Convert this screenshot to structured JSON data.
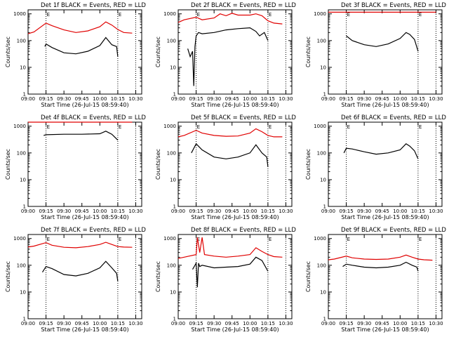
{
  "colors": {
    "events": "#000000",
    "lld": "#e00000",
    "axes": "#000000",
    "background": "#ffffff"
  },
  "chart_data": [
    {
      "type": "line",
      "title": "Det 1f BLACK = Events, RED = LLD",
      "xlabel": "Start Time (26-Jul-15 08:59:40)",
      "ylabel": "Counts/sec",
      "xticks": [
        "09:00",
        "09:15",
        "09:30",
        "09:45",
        "10:00",
        "10:15",
        "10:30"
      ],
      "yticks": [
        "1",
        "10",
        "100",
        "1000"
      ],
      "ylog": true,
      "ylim": [
        1,
        1000
      ],
      "markers": {
        "time": [
          "09:15",
          "10:15",
          "10:30"
        ],
        "labels": [
          "E",
          "E",
          ""
        ]
      },
      "series": [
        {
          "name": "LLD",
          "color": "red",
          "x": [
            "09:00",
            "09:05",
            "09:15",
            "09:20",
            "09:30",
            "09:40",
            "09:50",
            "10:00",
            "10:05",
            "10:10",
            "10:15",
            "10:20",
            "10:27"
          ],
          "y": [
            180,
            210,
            450,
            360,
            250,
            200,
            230,
            330,
            500,
            380,
            260,
            200,
            190
          ]
        },
        {
          "name": "Events",
          "color": "black",
          "x": [
            "09:14",
            "09:15",
            "09:20",
            "09:30",
            "09:40",
            "09:50",
            "10:00",
            "10:05",
            "10:10",
            "10:14",
            "10:15"
          ],
          "y": [
            60,
            75,
            55,
            35,
            32,
            40,
            65,
            130,
            70,
            60,
            25
          ]
        }
      ]
    },
    {
      "type": "line",
      "title": "Det 2f BLACK = Events, RED = LLD",
      "xlabel": "Start Time (26-Jul-15 08:59:40)",
      "ylabel": "Counts/sec",
      "xticks": [
        "09:00",
        "09:15",
        "09:30",
        "09:45",
        "10:00",
        "10:15",
        "10:30"
      ],
      "yticks": [
        "1",
        "10",
        "100",
        "1000"
      ],
      "ylog": true,
      "ylim": [
        1,
        1000
      ],
      "markers": {
        "time": [
          "09:15",
          "10:15",
          "10:30"
        ],
        "labels": [
          "E",
          "E",
          ""
        ]
      },
      "series": [
        {
          "name": "LLD",
          "color": "red",
          "x": [
            "09:00",
            "09:05",
            "09:15",
            "09:20",
            "09:30",
            "09:35",
            "09:40",
            "09:45",
            "09:50",
            "10:00",
            "10:05",
            "10:10",
            "10:15",
            "10:20",
            "10:27"
          ],
          "y": [
            480,
            600,
            750,
            600,
            700,
            1000,
            850,
            1050,
            900,
            900,
            1000,
            850,
            550,
            450,
            420
          ]
        },
        {
          "name": "Events",
          "color": "black",
          "x": [
            "09:08",
            "09:10",
            "09:12",
            "09:13",
            "09:14",
            "09:15",
            "09:17",
            "09:20",
            "09:30",
            "09:40",
            "09:50",
            "10:00",
            "10:05",
            "10:08",
            "10:12",
            "10:15"
          ],
          "y": [
            50,
            25,
            40,
            2,
            60,
            150,
            200,
            180,
            200,
            250,
            280,
            300,
            220,
            150,
            200,
            100
          ]
        }
      ]
    },
    {
      "type": "line",
      "title": "Det 3f BLACK = Events, RED = LLD",
      "xlabel": "Start Time (26-Jul-15 08:59:40)",
      "ylabel": "Counts/sec",
      "xticks": [
        "09:00",
        "09:15",
        "09:30",
        "09:45",
        "10:00",
        "10:15",
        "10:30"
      ],
      "yticks": [
        "1",
        "10",
        "100",
        "1000"
      ],
      "ylog": true,
      "ylim": [
        1,
        1000
      ],
      "markers": {
        "time": [
          "09:15",
          "10:15",
          "10:30"
        ],
        "labels": [
          "E",
          "E",
          ""
        ]
      },
      "series": [
        {
          "name": "LLD",
          "color": "red",
          "x": [
            "09:00",
            "09:15",
            "09:30",
            "09:45",
            "10:00",
            "10:15",
            "10:30"
          ],
          "y": [
            1150,
            1150,
            1150,
            1150,
            1150,
            1150,
            1150
          ]
        },
        {
          "name": "Events",
          "color": "black",
          "x": [
            "09:15",
            "09:20",
            "09:30",
            "09:40",
            "09:50",
            "10:00",
            "10:05",
            "10:08",
            "10:12",
            "10:15"
          ],
          "y": [
            150,
            100,
            70,
            60,
            75,
            120,
            200,
            170,
            110,
            40
          ]
        }
      ]
    },
    {
      "type": "line",
      "title": "Det 4f BLACK = Events, RED = LLD",
      "xlabel": "Start Time (26-Jul-15 08:59:40)",
      "ylabel": "Counts/sec",
      "xticks": [
        "09:00",
        "09:15",
        "09:30",
        "09:45",
        "10:00",
        "10:15",
        "10:30"
      ],
      "yticks": [
        "1",
        "10",
        "100",
        "1000"
      ],
      "ylog": true,
      "ylim": [
        1,
        1000
      ],
      "markers": {
        "time": [
          "09:15",
          "10:15",
          "10:30"
        ],
        "labels": [
          "E",
          "E",
          ""
        ]
      },
      "series": [
        {
          "name": "LLD",
          "color": "red",
          "x": [
            "09:00",
            "09:15",
            "09:30",
            "09:45",
            "10:00",
            "10:05",
            "10:10",
            "10:20",
            "10:27"
          ],
          "y": [
            2000,
            2000,
            2000,
            2000,
            2100,
            2600,
            2200,
            2000,
            1900
          ]
        },
        {
          "name": "Events",
          "color": "black",
          "x": [
            "09:13",
            "09:15",
            "09:30",
            "09:45",
            "10:00",
            "10:05",
            "10:10",
            "10:15"
          ],
          "y": [
            450,
            480,
            500,
            500,
            520,
            650,
            500,
            300
          ]
        }
      ]
    },
    {
      "type": "line",
      "title": "Det 5f BLACK = Events, RED = LLD",
      "xlabel": "Start Time (26-Jul-15 08:59:40)",
      "ylabel": "Counts/sec",
      "xticks": [
        "09:00",
        "09:15",
        "09:30",
        "09:45",
        "10:00",
        "10:15",
        "10:30"
      ],
      "yticks": [
        "1",
        "10",
        "100",
        "1000"
      ],
      "ylog": true,
      "ylim": [
        1,
        1000
      ],
      "markers": {
        "time": [
          "09:15",
          "10:15",
          "10:30"
        ],
        "labels": [
          "E",
          "E",
          ""
        ]
      },
      "series": [
        {
          "name": "LLD",
          "color": "red",
          "x": [
            "09:00",
            "09:05",
            "09:15",
            "09:20",
            "09:30",
            "09:40",
            "09:50",
            "10:00",
            "10:05",
            "10:10",
            "10:15",
            "10:20",
            "10:27"
          ],
          "y": [
            400,
            450,
            700,
            550,
            450,
            420,
            430,
            550,
            800,
            620,
            450,
            400,
            400
          ]
        },
        {
          "name": "Events",
          "color": "black",
          "x": [
            "09:11",
            "09:15",
            "09:20",
            "09:30",
            "09:40",
            "09:50",
            "10:00",
            "10:05",
            "10:10",
            "10:14",
            "10:15"
          ],
          "y": [
            100,
            220,
            130,
            70,
            60,
            70,
            100,
            200,
            100,
            70,
            30
          ]
        }
      ]
    },
    {
      "type": "line",
      "title": "Det 6f BLACK = Events, RED = LLD",
      "xlabel": "Start Time (26-Jul-15 08:59:40)",
      "ylabel": "Counts/sec",
      "xticks": [
        "09:00",
        "09:15",
        "09:30",
        "09:45",
        "10:00",
        "10:15",
        "10:30"
      ],
      "yticks": [
        "1",
        "10",
        "100",
        "1000"
      ],
      "ylog": true,
      "ylim": [
        1,
        1000
      ],
      "markers": {
        "time": [
          "09:15",
          "10:15",
          "10:30"
        ],
        "labels": [
          "E",
          "E",
          ""
        ]
      },
      "series": [
        {
          "name": "Events",
          "color": "black",
          "x": [
            "09:13",
            "09:15",
            "09:20",
            "09:30",
            "09:40",
            "09:50",
            "10:00",
            "10:05",
            "10:08",
            "10:12",
            "10:15"
          ],
          "y": [
            100,
            150,
            140,
            110,
            90,
            100,
            130,
            220,
            180,
            120,
            60
          ]
        }
      ]
    },
    {
      "type": "line",
      "title": "Det 7f BLACK = Events, RED = LLD",
      "xlabel": "Start Time (26-Jul-15 08:59:40)",
      "ylabel": "Counts/sec",
      "xticks": [
        "09:00",
        "09:15",
        "09:30",
        "09:45",
        "10:00",
        "10:15",
        "10:30"
      ],
      "yticks": [
        "1",
        "10",
        "100",
        "1000"
      ],
      "ylog": true,
      "ylim": [
        1,
        1000
      ],
      "markers": {
        "time": [
          "09:15",
          "10:15",
          "10:30"
        ],
        "labels": [
          "E",
          "E",
          ""
        ]
      },
      "series": [
        {
          "name": "LLD",
          "color": "red",
          "x": [
            "09:00",
            "09:05",
            "09:15",
            "09:20",
            "09:30",
            "09:40",
            "09:50",
            "10:00",
            "10:05",
            "10:10",
            "10:15",
            "10:20",
            "10:27"
          ],
          "y": [
            480,
            520,
            700,
            560,
            470,
            450,
            500,
            600,
            720,
            600,
            500,
            480,
            470
          ]
        },
        {
          "name": "Events",
          "color": "black",
          "x": [
            "09:12",
            "09:15",
            "09:20",
            "09:30",
            "09:40",
            "09:50",
            "10:00",
            "10:05",
            "10:10",
            "10:14",
            "10:15"
          ],
          "y": [
            55,
            90,
            75,
            45,
            40,
            50,
            80,
            140,
            80,
            50,
            25
          ]
        }
      ]
    },
    {
      "type": "line",
      "title": "Det 8f BLACK = Events, RED = LLD",
      "xlabel": "Start Time (26-Jul-15 08:59:40)",
      "ylabel": "Counts/sec",
      "xticks": [
        "09:00",
        "09:15",
        "09:30",
        "09:45",
        "10:00",
        "10:15",
        "10:30"
      ],
      "yticks": [
        "1",
        "10",
        "100",
        "1000"
      ],
      "ylog": true,
      "ylim": [
        1,
        1000
      ],
      "markers": {
        "time": [
          "09:15",
          "10:15",
          "10:30"
        ],
        "labels": [
          "E",
          "E",
          ""
        ]
      },
      "series": [
        {
          "name": "LLD",
          "color": "red",
          "x": [
            "09:00",
            "09:05",
            "09:15",
            "09:16",
            "09:18",
            "09:20",
            "09:22",
            "09:30",
            "09:40",
            "09:50",
            "10:00",
            "10:05",
            "10:10",
            "10:15",
            "10:20",
            "10:27"
          ],
          "y": [
            180,
            200,
            250,
            1100,
            300,
            1100,
            250,
            220,
            200,
            220,
            250,
            450,
            330,
            250,
            210,
            200
          ]
        },
        {
          "name": "Events",
          "color": "black",
          "x": [
            "09:12",
            "09:14",
            "09:15",
            "09:16",
            "09:17",
            "09:18",
            "09:20",
            "09:30",
            "09:40",
            "09:50",
            "10:00",
            "10:05",
            "10:10",
            "10:15"
          ],
          "y": [
            70,
            100,
            120,
            15,
            120,
            90,
            100,
            80,
            85,
            90,
            110,
            200,
            150,
            60
          ]
        }
      ]
    },
    {
      "type": "line",
      "title": "Det 9f BLACK = Events, RED = LLD",
      "xlabel": "Start Time (26-Jul-15 08:59:40)",
      "ylabel": "Counts/sec",
      "xticks": [
        "09:00",
        "09:15",
        "09:30",
        "09:45",
        "10:00",
        "10:15",
        "10:30"
      ],
      "yticks": [
        "1",
        "10",
        "100",
        "1000"
      ],
      "ylog": true,
      "ylim": [
        1,
        1000
      ],
      "markers": {
        "time": [
          "09:15",
          "10:15",
          "10:30"
        ],
        "labels": [
          "E",
          "E",
          ""
        ]
      },
      "series": [
        {
          "name": "LLD",
          "color": "red",
          "x": [
            "09:00",
            "09:05",
            "09:15",
            "09:20",
            "09:30",
            "09:40",
            "09:50",
            "10:00",
            "10:05",
            "10:10",
            "10:15",
            "10:20",
            "10:27"
          ],
          "y": [
            160,
            170,
            220,
            190,
            170,
            165,
            170,
            200,
            240,
            200,
            170,
            160,
            155
          ]
        },
        {
          "name": "Events",
          "color": "black",
          "x": [
            "09:12",
            "09:15",
            "09:20",
            "09:30",
            "09:40",
            "09:50",
            "10:00",
            "10:05",
            "10:10",
            "10:14",
            "10:15"
          ],
          "y": [
            90,
            110,
            100,
            85,
            80,
            85,
            100,
            130,
            100,
            85,
            60
          ]
        }
      ]
    }
  ]
}
